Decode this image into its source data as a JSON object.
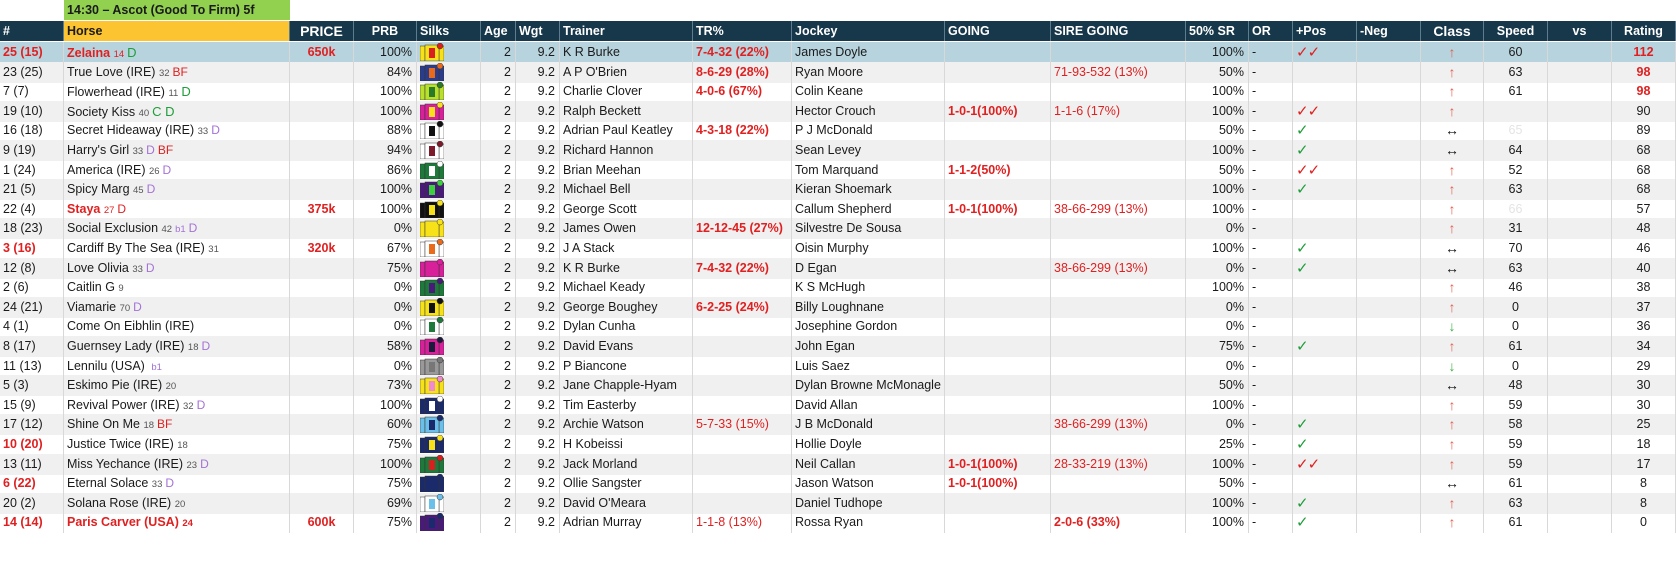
{
  "race_title": "14:30 – Ascot (Good To Firm) 5f",
  "columns": {
    "num": "#",
    "horse": "Horse",
    "price": "PRICE",
    "prb": "PRB",
    "silks": "Silks",
    "age": "Age",
    "wgt": "Wgt",
    "trainer": "Trainer",
    "tr_pct": "TR%",
    "jockey": "Jockey",
    "going": "GOING",
    "sire_going": "SIRE GOING",
    "sr50": "50% SR",
    "or": "OR",
    "pos": "+Pos",
    "neg": "-Neg",
    "class": "Class",
    "speed": "Speed",
    "vs": "vs",
    "rating": "Rating"
  },
  "rows": [
    {
      "num": "25 (15)",
      "num_red": true,
      "horse": "Zelaina",
      "horse_red": true,
      "sup": "14",
      "flag": "D",
      "flag_color": "green",
      "price": "650k",
      "prb": "100%",
      "silk": "yellow-red-cap",
      "age": "2",
      "wgt": "9.2",
      "trainer": "K R Burke",
      "tr": "7-4-32 (22%)",
      "tr_bold": true,
      "jockey": "James Doyle",
      "going": "",
      "going_bold": true,
      "sire": "",
      "sr": "100%",
      "or": "-",
      "pos": "✓✓",
      "pos_color": "red",
      "neg": "",
      "cls": "↑",
      "cls_type": "up",
      "speed": "60",
      "vs": "",
      "rating": "112",
      "rating_red": true,
      "selected": true
    },
    {
      "num": "23 (25)",
      "horse": "True Love (IRE)",
      "sup": "32",
      "flag": "BF",
      "flag_color": "red",
      "price": "",
      "prb": "84%",
      "silk": "blue-orange-ball",
      "age": "2",
      "wgt": "9.2",
      "trainer": "A P O'Brien",
      "tr": "8-6-29 (28%)",
      "tr_bold": true,
      "jockey": "Ryan Moore",
      "going": "",
      "sire": "71-93-532 (13%)",
      "sr": "50%",
      "or": "-",
      "pos": "",
      "neg": "",
      "cls": "↑",
      "cls_type": "up",
      "speed": "63",
      "vs": "",
      "rating": "98",
      "rating_red": true
    },
    {
      "num": "7 (7)",
      "horse": "Flowerhead (IRE)",
      "sup": "11",
      "flag": "D",
      "flag_color": "green",
      "price": "",
      "prb": "100%",
      "silk": "lime-cross",
      "age": "2",
      "wgt": "9.2",
      "trainer": "Charlie Clover",
      "tr": "4-0-6 (67%)",
      "tr_bold": true,
      "jockey": "Colin Keane",
      "going": "",
      "sire": "",
      "sr": "100%",
      "or": "-",
      "pos": "",
      "neg": "",
      "cls": "↑",
      "cls_type": "up",
      "speed": "61",
      "vs": "",
      "rating": "98",
      "rating_red": true
    },
    {
      "num": "19 (10)",
      "horse": "Society Kiss",
      "sup": "40",
      "flag": "C D",
      "flag_color": "green",
      "price": "",
      "prb": "100%",
      "silk": "magenta-yellow-dots",
      "age": "2",
      "wgt": "9.2",
      "trainer": "Ralph Beckett",
      "tr": "",
      "jockey": "Hector Crouch",
      "going": "1-0-1(100%)",
      "going_bold": true,
      "sire": "1-1-6 (17%)",
      "sr": "100%",
      "or": "-",
      "pos": "✓✓",
      "pos_color": "red",
      "neg": "",
      "cls": "↑",
      "cls_type": "up",
      "speed": "",
      "vs": "",
      "rating": "90"
    },
    {
      "num": "16 (18)",
      "horse": "Secret Hideaway (IRE)",
      "sup": "33",
      "flag": "D",
      "flag_color": "purple",
      "price": "",
      "prb": "88%",
      "silk": "white-black-stripes",
      "age": "2",
      "wgt": "9.2",
      "trainer": "Adrian Paul Keatley",
      "tr": "4-3-18 (22%)",
      "tr_bold": true,
      "jockey": "P J McDonald",
      "going": "",
      "sire": "",
      "sr": "50%",
      "or": "-",
      "pos": "✓",
      "pos_color": "green",
      "neg": "",
      "cls": "↔",
      "cls_type": "side",
      "speed": "65",
      "speed_faint": true,
      "vs": "",
      "rating": "89"
    },
    {
      "num": "9 (19)",
      "horse": "Harry's Girl",
      "sup": "33",
      "flag": "D BF",
      "flag_color": "mixed",
      "price": "",
      "prb": "94%",
      "silk": "white-maroon-v",
      "age": "2",
      "wgt": "9.2",
      "trainer": "Richard Hannon",
      "tr": "",
      "jockey": "Sean Levey",
      "going": "",
      "sire": "",
      "sr": "100%",
      "or": "-",
      "pos": "✓",
      "pos_color": "green",
      "neg": "",
      "cls": "↔",
      "cls_type": "side",
      "speed": "64",
      "vs": "",
      "rating": "68"
    },
    {
      "num": "1 (24)",
      "horse": "America (IRE)",
      "sup": "26",
      "flag": "D",
      "flag_color": "purple",
      "price": "",
      "prb": "86%",
      "silk": "green-white-hoops",
      "age": "2",
      "wgt": "9.2",
      "trainer": "Brian Meehan",
      "tr": "",
      "jockey": "Tom Marquand",
      "going": "1-1-2(50%)",
      "going_bold": true,
      "sire": "",
      "sr": "50%",
      "or": "-",
      "pos": "✓✓",
      "pos_color": "red",
      "neg": "",
      "cls": "↑",
      "cls_type": "up",
      "speed": "52",
      "vs": "",
      "rating": "68"
    },
    {
      "num": "21 (5)",
      "horse": "Spicy Marg",
      "sup": "45",
      "flag": "D",
      "flag_color": "purple",
      "price": "",
      "prb": "100%",
      "silk": "purple-green-dots",
      "age": "2",
      "wgt": "9.2",
      "trainer": "Michael Bell",
      "tr": "",
      "jockey": "Kieran Shoemark",
      "going": "",
      "sire": "",
      "sr": "100%",
      "or": "-",
      "pos": "✓",
      "pos_color": "green",
      "neg": "",
      "cls": "↑",
      "cls_type": "up",
      "speed": "63",
      "vs": "",
      "rating": "68"
    },
    {
      "num": "22 (4)",
      "horse": "Staya",
      "horse_red": true,
      "sup": "27",
      "flag": "D",
      "flag_color": "red",
      "price": "375k",
      "prb": "100%",
      "silk": "black-yellow-stripes",
      "age": "2",
      "wgt": "9.2",
      "trainer": "George Scott",
      "tr": "",
      "jockey": "Callum Shepherd",
      "going": "1-0-1(100%)",
      "going_bold": true,
      "sire": "38-66-299 (13%)",
      "sr": "100%",
      "or": "-",
      "pos": "",
      "neg": "",
      "cls": "↑",
      "cls_type": "up",
      "speed": "66",
      "speed_faint": true,
      "vs": "",
      "rating": "57"
    },
    {
      "num": "18 (23)",
      "horse": "Social Exclusion",
      "sup": "42",
      "flag2": "b1",
      "flag": "D",
      "flag_color": "purple",
      "price": "",
      "prb": "0%",
      "silk": "yellow-plain",
      "age": "2",
      "wgt": "9.2",
      "trainer": "James Owen",
      "tr": "12-12-45 (27%)",
      "tr_bold": true,
      "jockey": "Silvestre De Sousa",
      "going": "",
      "sire": "",
      "sr": "0%",
      "or": "-",
      "pos": "",
      "neg": "",
      "cls": "↑",
      "cls_type": "up",
      "speed": "31",
      "vs": "",
      "rating": "48"
    },
    {
      "num": "3 (16)",
      "num_red": true,
      "horse": "Cardiff By The Sea (IRE)",
      "sup": "31",
      "flag": "",
      "flag_color": "",
      "price": "320k",
      "prb": "67%",
      "silk": "white-orange-chevron",
      "age": "2",
      "wgt": "9.2",
      "trainer": "J A Stack",
      "tr": "",
      "jockey": "Oisin Murphy",
      "going": "",
      "sire": "",
      "sr": "100%",
      "or": "-",
      "pos": "✓",
      "pos_color": "green",
      "neg": "",
      "cls": "↔",
      "cls_type": "side",
      "speed": "70",
      "vs": "",
      "rating": "46"
    },
    {
      "num": "12 (8)",
      "horse": "Love Olivia",
      "sup": "33",
      "flag": "D",
      "flag_color": "purple",
      "price": "",
      "prb": "75%",
      "silk": "magenta-plain",
      "age": "2",
      "wgt": "9.2",
      "trainer": "K R Burke",
      "tr": "7-4-32 (22%)",
      "tr_bold": true,
      "jockey": "D Egan",
      "going": "",
      "sire": "38-66-299 (13%)",
      "sr": "0%",
      "or": "-",
      "pos": "✓",
      "pos_color": "green",
      "neg": "",
      "cls": "↔",
      "cls_type": "side",
      "speed": "63",
      "vs": "",
      "rating": "40"
    },
    {
      "num": "2 (6)",
      "horse": "Caitlin G",
      "sup": "9",
      "flag": "",
      "flag_color": "",
      "price": "",
      "prb": "0%",
      "silk": "green-purple-dots",
      "age": "2",
      "wgt": "9.2",
      "trainer": "Michael Keady",
      "tr": "",
      "jockey": "K S McHugh",
      "going": "",
      "sire": "",
      "sr": "100%",
      "or": "-",
      "pos": "",
      "neg": "",
      "cls": "↑",
      "cls_type": "up",
      "speed": "46",
      "vs": "",
      "rating": "38"
    },
    {
      "num": "24 (21)",
      "horse": "Viamarie",
      "sup": "70",
      "flag": "D",
      "flag_color": "purple",
      "price": "",
      "prb": "0%",
      "silk": "yellow-black-dots",
      "age": "2",
      "wgt": "9.2",
      "trainer": "George Boughey",
      "tr": "6-2-25 (24%)",
      "tr_bold": true,
      "jockey": "Billy Loughnane",
      "going": "",
      "sire": "",
      "sr": "0%",
      "or": "-",
      "pos": "",
      "neg": "",
      "cls": "↑",
      "cls_type": "up",
      "speed": "0",
      "vs": "",
      "rating": "37"
    },
    {
      "num": "4 (1)",
      "horse": "Come On Eibhlin (IRE)",
      "sup": "",
      "flag": "",
      "flag_color": "",
      "price": "",
      "prb": "0%",
      "silk": "white-green-dots",
      "age": "2",
      "wgt": "9.2",
      "trainer": "Dylan Cunha",
      "tr": "",
      "jockey": "Josephine Gordon",
      "going": "",
      "sire": "",
      "sr": "0%",
      "or": "-",
      "pos": "",
      "neg": "",
      "cls": "↓",
      "cls_type": "down",
      "speed": "0",
      "vs": "",
      "rating": "36"
    },
    {
      "num": "8 (17)",
      "horse": "Guernsey Lady (IRE)",
      "sup": "18",
      "flag": "D",
      "flag_color": "purple",
      "price": "",
      "prb": "58%",
      "silk": "magenta-dark-cap",
      "age": "2",
      "wgt": "9.2",
      "trainer": "David Evans",
      "tr": "",
      "jockey": "John Egan",
      "going": "",
      "sire": "",
      "sr": "75%",
      "or": "-",
      "pos": "✓",
      "pos_color": "green",
      "neg": "",
      "cls": "↑",
      "cls_type": "up",
      "speed": "61",
      "vs": "",
      "rating": "34"
    },
    {
      "num": "11 (13)",
      "horse": "Lennilu (USA)",
      "sup": "",
      "flag2": "b1",
      "flag": "",
      "flag_color": "",
      "price": "",
      "prb": "0%",
      "silk": "grey-plain",
      "age": "2",
      "wgt": "9.2",
      "trainer": "P Biancone",
      "tr": "",
      "jockey": "Luis Saez",
      "going": "",
      "sire": "",
      "sr": "0%",
      "or": "-",
      "pos": "",
      "neg": "",
      "cls": "↓",
      "cls_type": "down",
      "speed": "0",
      "vs": "",
      "rating": "29"
    },
    {
      "num": "5 (3)",
      "horse": "Eskimo Pie (IRE)",
      "sup": "20",
      "flag": "",
      "flag_color": "",
      "price": "",
      "prb": "73%",
      "silk": "yellow-pink-star",
      "age": "2",
      "wgt": "9.2",
      "trainer": "Jane Chapple-Hyam",
      "tr": "",
      "jockey": "Dylan Browne McMonagle",
      "going": "",
      "sire": "",
      "sr": "50%",
      "or": "-",
      "pos": "",
      "neg": "",
      "cls": "↔",
      "cls_type": "side",
      "speed": "48",
      "vs": "",
      "rating": "30"
    },
    {
      "num": "15 (9)",
      "horse": "Revival Power (IRE)",
      "sup": "32",
      "flag": "D",
      "flag_color": "purple",
      "price": "",
      "prb": "100%",
      "silk": "navy-white-band",
      "age": "2",
      "wgt": "9.2",
      "trainer": "Tim Easterby",
      "tr": "",
      "jockey": "David Allan",
      "going": "",
      "sire": "",
      "sr": "100%",
      "or": "-",
      "pos": "",
      "neg": "",
      "cls": "↑",
      "cls_type": "up",
      "speed": "59",
      "vs": "",
      "rating": "30"
    },
    {
      "num": "17 (12)",
      "horse": "Shine On Me",
      "sup": "18",
      "flag": "BF",
      "flag_color": "red",
      "price": "",
      "prb": "60%",
      "silk": "lightblue-navy-band",
      "age": "2",
      "wgt": "9.2",
      "trainer": "Archie Watson",
      "tr": "5-7-33 (15%)",
      "tr_bold": false,
      "jockey": "J B McDonald",
      "going": "",
      "sire": "38-66-299 (13%)",
      "sr": "0%",
      "or": "-",
      "pos": "✓",
      "pos_color": "green",
      "neg": "",
      "cls": "↑",
      "cls_type": "up",
      "speed": "58",
      "vs": "",
      "rating": "25"
    },
    {
      "num": "10 (20)",
      "num_red": true,
      "horse": "Justice Twice (IRE)",
      "sup": "18",
      "flag": "",
      "flag_color": "",
      "price": "",
      "prb": "75%",
      "silk": "navy-yellow-v",
      "age": "2",
      "wgt": "9.2",
      "trainer": "H Kobeissi",
      "tr": "",
      "jockey": "Hollie Doyle",
      "going": "",
      "sire": "",
      "sr": "25%",
      "or": "-",
      "pos": "✓",
      "pos_color": "green",
      "neg": "",
      "cls": "↑",
      "cls_type": "up",
      "speed": "59",
      "vs": "",
      "rating": "18"
    },
    {
      "num": "13 (11)",
      "horse": "Miss Yechance (IRE)",
      "sup": "23",
      "flag": "D",
      "flag_color": "purple",
      "price": "",
      "prb": "100%",
      "silk": "green-red-cap",
      "age": "2",
      "wgt": "9.2",
      "trainer": "Jack Morland",
      "tr": "",
      "jockey": "Neil Callan",
      "going": "1-0-1(100%)",
      "going_bold": true,
      "sire": "28-33-219 (13%)",
      "sr": "100%",
      "or": "-",
      "pos": "✓✓",
      "pos_color": "red",
      "neg": "",
      "cls": "↑",
      "cls_type": "up",
      "speed": "59",
      "vs": "",
      "rating": "17"
    },
    {
      "num": "6 (22)",
      "num_red": true,
      "horse": "Eternal Solace",
      "sup": "33",
      "flag": "D",
      "flag_color": "purple",
      "price": "",
      "prb": "75%",
      "silk": "navy-plain",
      "age": "2",
      "wgt": "9.2",
      "trainer": "Ollie Sangster",
      "tr": "",
      "jockey": "Jason Watson",
      "going": "1-0-1(100%)",
      "going_bold": true,
      "sire": "",
      "sr": "50%",
      "or": "-",
      "pos": "",
      "neg": "",
      "cls": "↔",
      "cls_type": "side",
      "speed": "61",
      "vs": "",
      "rating": "8"
    },
    {
      "num": "20 (2)",
      "horse": "Solana Rose (IRE)",
      "sup": "20",
      "flag": "",
      "flag_color": "",
      "price": "",
      "prb": "69%",
      "silk": "white-lightblue",
      "age": "2",
      "wgt": "9.2",
      "trainer": "David O'Meara",
      "tr": "",
      "jockey": "Daniel Tudhope",
      "going": "",
      "sire": "",
      "sr": "100%",
      "or": "-",
      "pos": "✓",
      "pos_color": "green",
      "neg": "",
      "cls": "↑",
      "cls_type": "up",
      "speed": "63",
      "vs": "",
      "rating": "8"
    },
    {
      "num": "14 (14)",
      "num_red": true,
      "horse": "Paris Carver (USA)",
      "horse_red": true,
      "horse_bold": true,
      "sup": "24",
      "sup_red": true,
      "flag": "",
      "flag_color": "",
      "price": "600k",
      "prb": "75%",
      "silk": "purple-navy",
      "age": "2",
      "wgt": "9.2",
      "trainer": "Adrian Murray",
      "tr": "1-1-8 (13%)",
      "tr_bold": false,
      "jockey": "Rossa Ryan",
      "going": "",
      "sire": "2-0-6 (33%)",
      "sire_bold": true,
      "sr": "100%",
      "or": "-",
      "pos": "✓",
      "pos_color": "green",
      "neg": "",
      "cls": "↑",
      "cls_type": "up",
      "speed": "61",
      "vs": "",
      "rating": "0"
    }
  ],
  "colors": {
    "header_bg": "#17374a",
    "horse_header_bg": "#fcc430",
    "title_bg": "#92d050",
    "selected_row": "#b7d4de",
    "red": "#e02020",
    "green": "#1e9e3a",
    "purple": "#a472d6"
  }
}
